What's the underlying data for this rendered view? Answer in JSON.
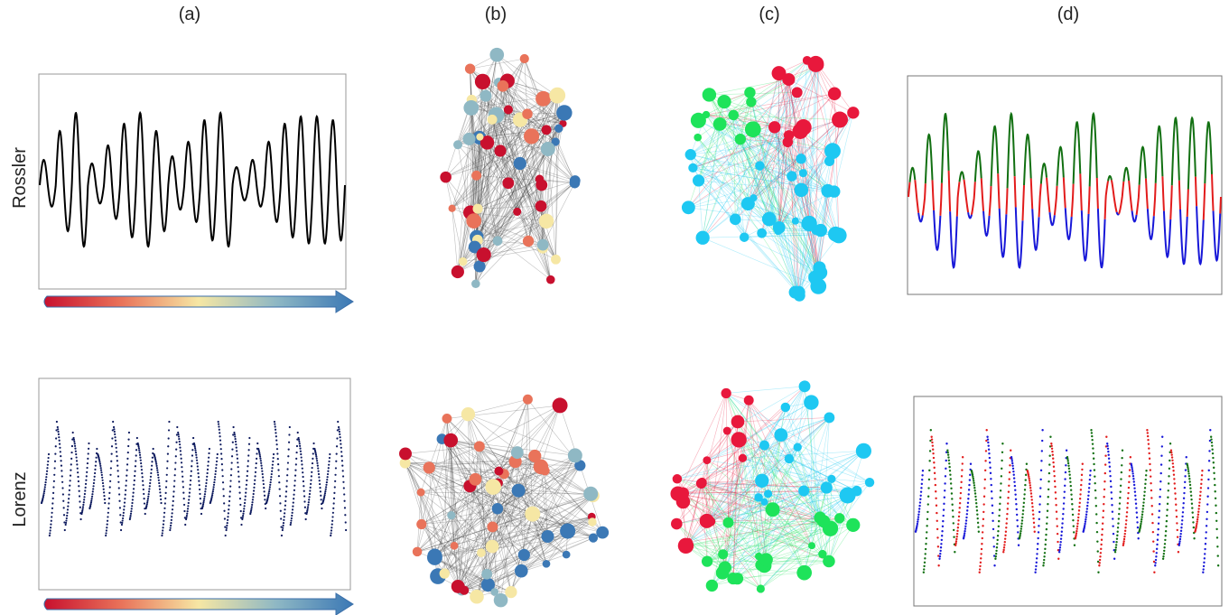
{
  "panel_labels": [
    "(a)",
    "(b)",
    "(c)",
    "(d)"
  ],
  "row_labels": [
    "Rossler",
    "Lorenz"
  ],
  "colors": {
    "series_black": "#000000",
    "series_navy": "#0d1a5e",
    "community_green": "#1ee35a",
    "community_red": "#e8183c",
    "community_cyan": "#1ec8f2",
    "segment_green": "#127012",
    "segment_red": "#e21c1c",
    "segment_blue": "#1818d8",
    "colormap": [
      "#c8102e",
      "#e9735a",
      "#f6e7a4",
      "#8fb8c4",
      "#3b78b5"
    ]
  },
  "icons": [
    "gradient-arrow-icon"
  ]
}
